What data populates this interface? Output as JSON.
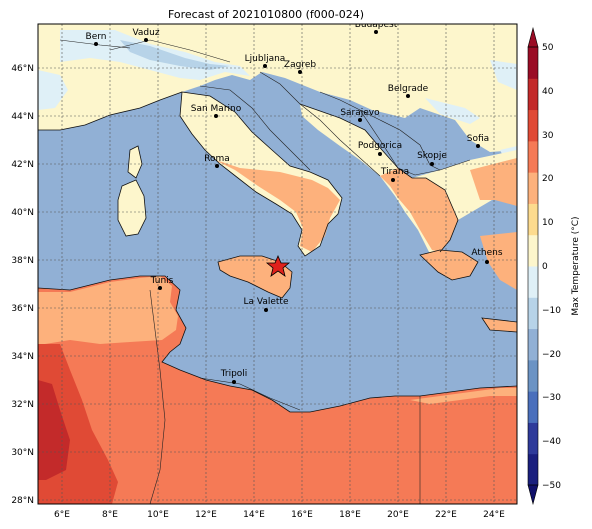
{
  "title": "Forecast of 2021010800 (f000-024)",
  "map": {
    "lon_ticks": [
      "6°E",
      "8°E",
      "10°E",
      "12°E",
      "14°E",
      "16°E",
      "18°E",
      "20°E",
      "22°E",
      "24°E"
    ],
    "lat_ticks": [
      "46°N",
      "44°N",
      "42°N",
      "40°N",
      "38°N",
      "36°N",
      "34°N",
      "32°N",
      "30°N",
      "28°N"
    ],
    "sea_color": "#91b0d5",
    "cities": [
      {
        "name": "Bern"
      },
      {
        "name": "Vaduz"
      },
      {
        "name": "Budapest"
      },
      {
        "name": "Ljubljana"
      },
      {
        "name": "Zagreb"
      },
      {
        "name": "Belgrade"
      },
      {
        "name": "San Marino"
      },
      {
        "name": "Sarajevo"
      },
      {
        "name": "Sofia"
      },
      {
        "name": "Podgorica"
      },
      {
        "name": "Skopje"
      },
      {
        "name": "Roma"
      },
      {
        "name": "Tirana"
      },
      {
        "name": "Athens"
      },
      {
        "name": "Tunis"
      },
      {
        "name": "La Valette"
      },
      {
        "name": "Tripoli"
      }
    ],
    "marker": {
      "type": "star",
      "color": "#e0211b"
    }
  },
  "colorbar": {
    "label": "Max Temperature (°C)",
    "ticks": [
      "50",
      "40",
      "30",
      "20",
      "10",
      "0",
      "−10",
      "−20",
      "−30",
      "−40",
      "−50"
    ],
    "colors": [
      "#313695",
      "#4575b4",
      "#74add1",
      "#abd9e9",
      "#e0f3f8",
      "#ffffbf",
      "#fee090",
      "#fdae61",
      "#f46d43",
      "#d73027",
      "#a50026"
    ],
    "band_colors": [
      "#1a1f7e",
      "#2e3a9a",
      "#4a6fbc",
      "#6b93c4",
      "#91b0d5",
      "#b7d3e8",
      "#dff0f7",
      "#fdf6cc",
      "#fddb8e",
      "#fdb17c",
      "#f57a56",
      "#e04a35",
      "#c32a2a",
      "#9a0c25"
    ]
  }
}
